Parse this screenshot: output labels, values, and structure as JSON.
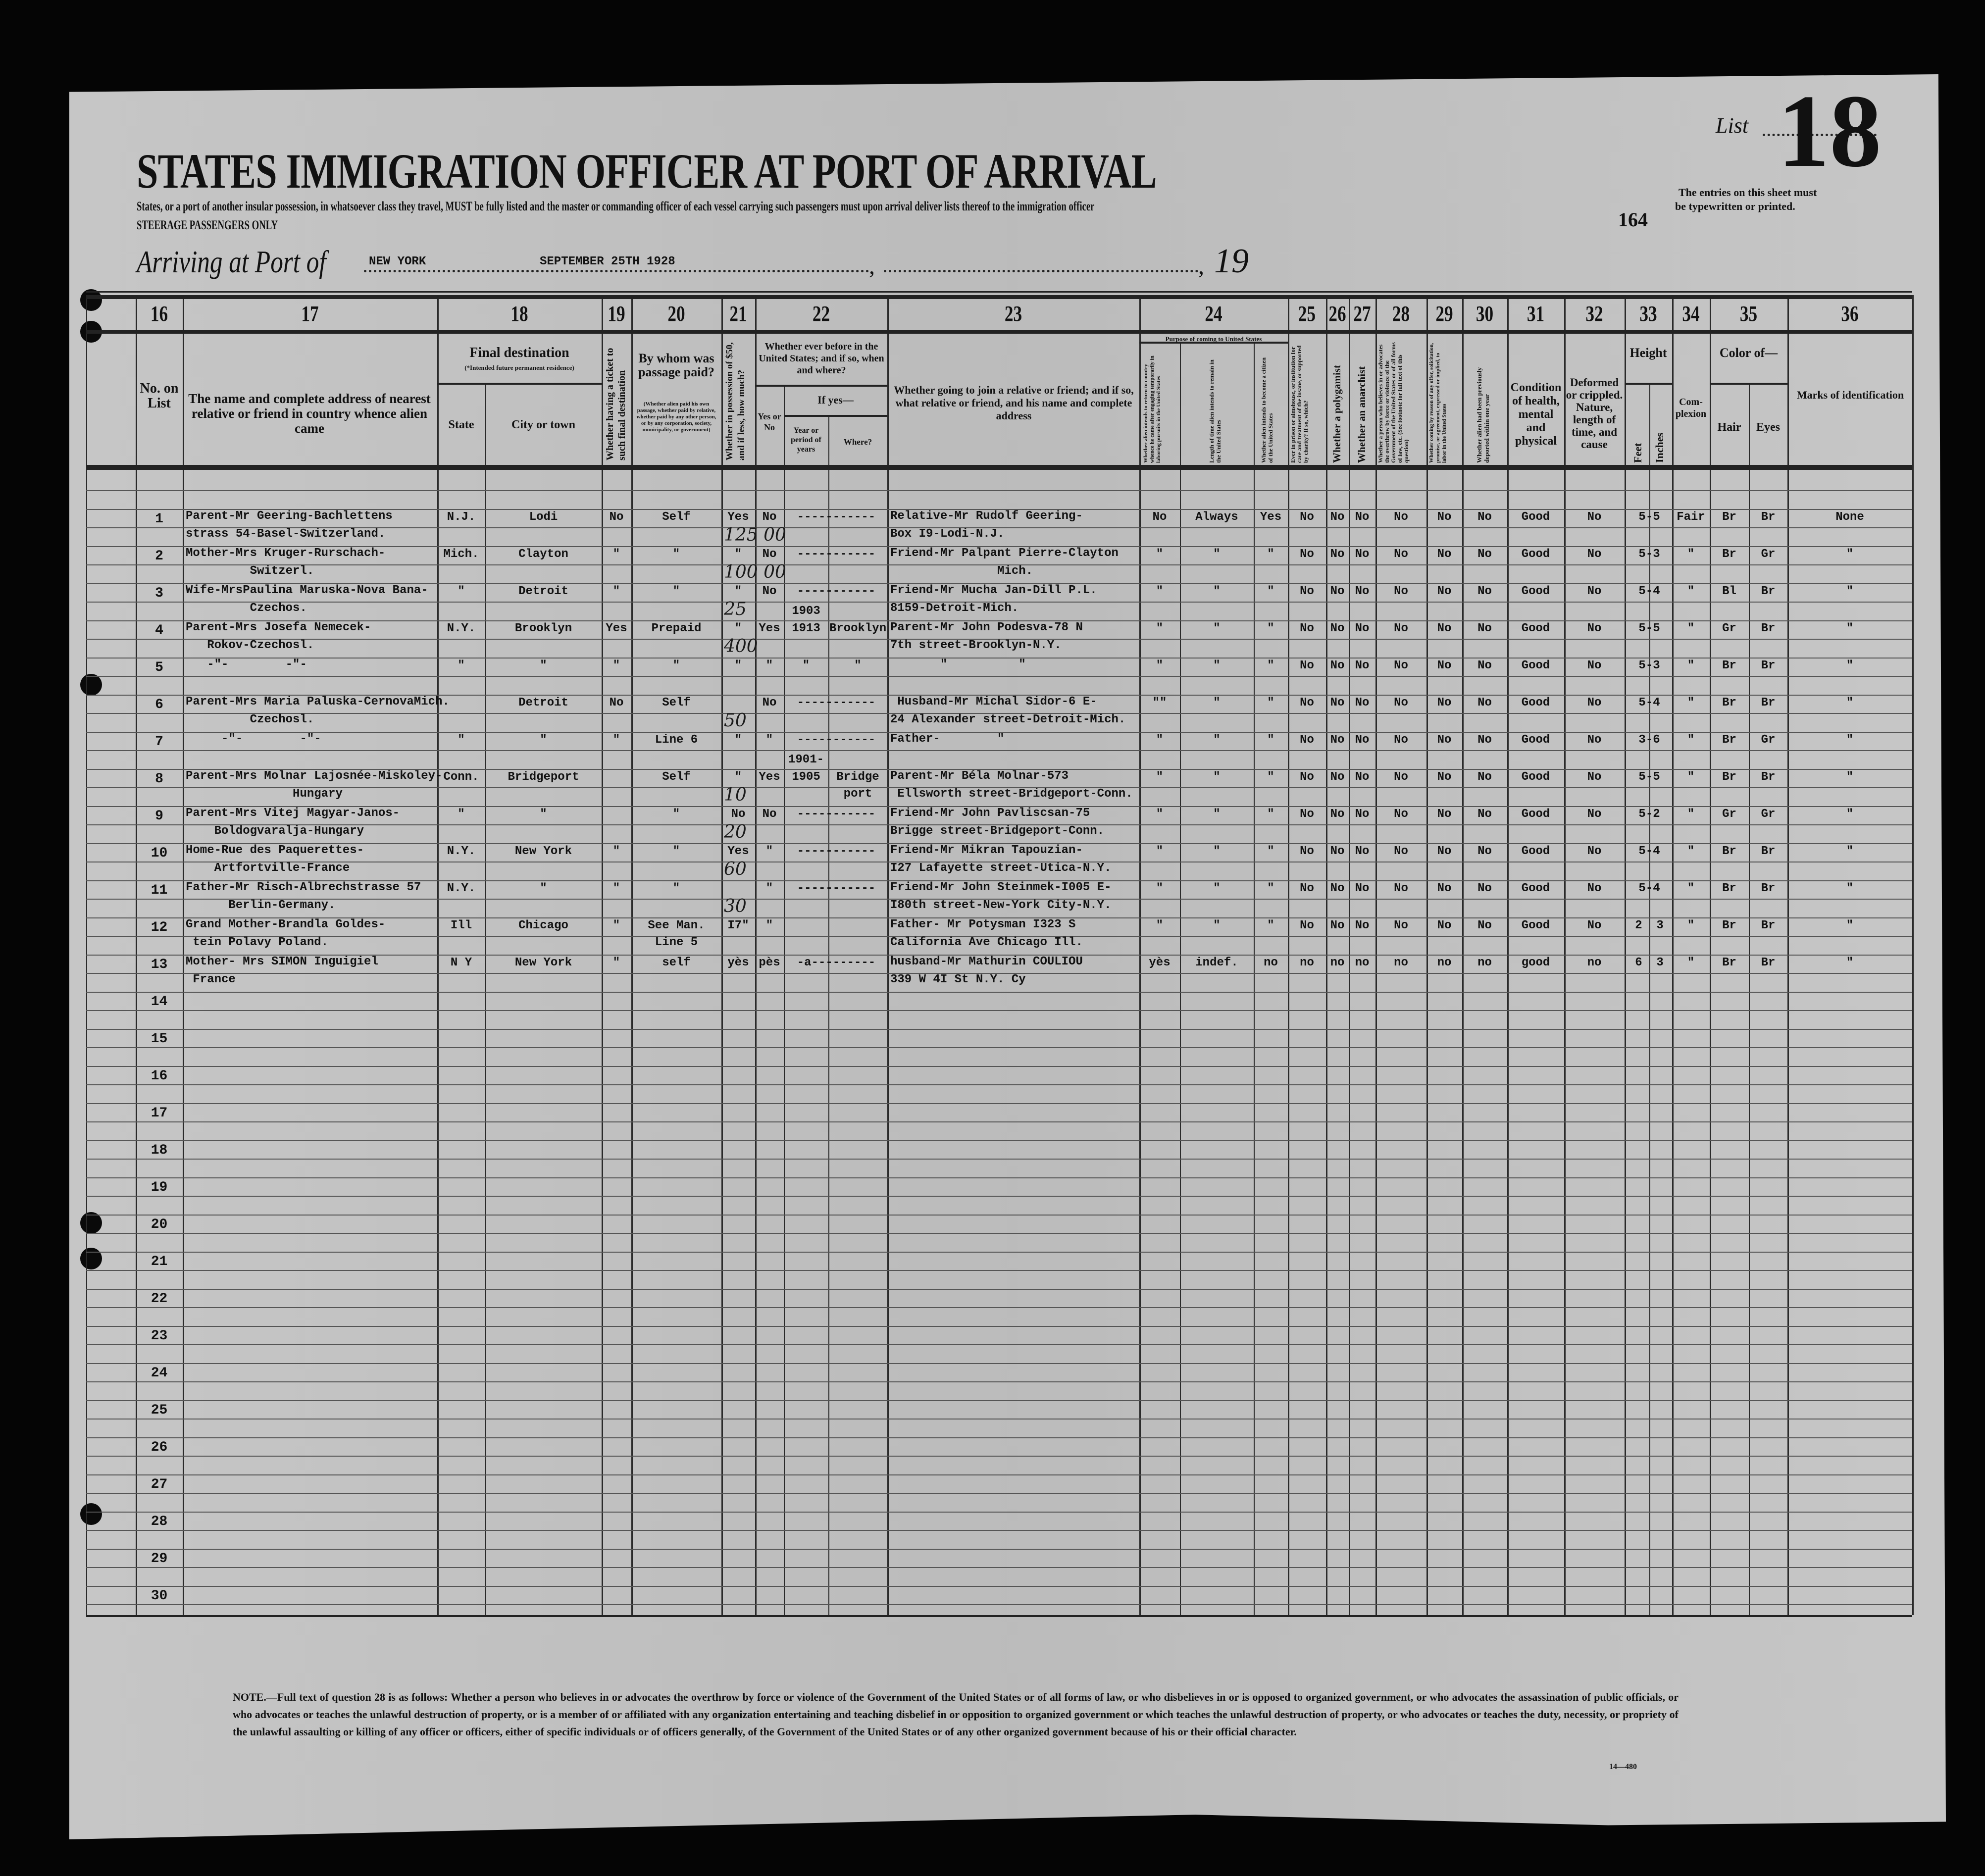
{
  "header": {
    "title": "STATES IMMIGRATION OFFICER AT PORT OF ARRIVAL",
    "instructions": "States, or a port of another insular possession, in whatsoever class they travel, MUST be fully listed and the master or commanding officer of each vessel carrying such passengers must upon arrival deliver lists thereof to the immigration officer",
    "class_note": "STEERAGE PASSENGERS ONLY",
    "arriving_label": "Arriving at Port of",
    "port": "NEW YORK",
    "date": "SEPTEMBER 25TH 1928",
    "comma": ",",
    "year_prefix": "19",
    "list_label": "List",
    "list_number": "18",
    "list_note_1": "The entries on this sheet must",
    "list_note_2": "be typewritten or printed.",
    "sheet_number": "164"
  },
  "columns": {
    "n16": "16",
    "n17": "17",
    "n18": "18",
    "n19": "19",
    "n20": "20",
    "n21": "21",
    "n22": "22",
    "n23": "23",
    "n24": "24",
    "n25": "25",
    "n26": "26",
    "n27": "27",
    "n28": "28",
    "n29": "29",
    "n30": "30",
    "n31": "31",
    "n32": "32",
    "n33": "33",
    "n34": "34",
    "n35": "35",
    "n36": "36",
    "c16": "No. on List",
    "c17": "The name and complete address of nearest relative or friend in country whence alien came",
    "c18": "Final destination",
    "c18_note": "(*Intended future permanent residence)",
    "c18_state": "State",
    "c18_city": "City or town",
    "c19": "Whether having a ticket to such final destination",
    "c20": "By whom was passage paid?",
    "c20_note": "(Whether alien paid his own passage, whether paid by relative, whether paid by any other person, or by any corporation, society, municipality, or government)",
    "c21": "Whether in possession of $50, and if less, how much?",
    "c22": "Whether ever before in the United States; and if so, when and where?",
    "c22_yesno": "Yes or No",
    "c22_ifyes": "If yes—",
    "c22_year": "Year or period of years",
    "c22_where": "Where?",
    "c23": "Whether going to join a relative or friend; and if so, what relative or friend, and his name and complete address",
    "c24": "Purpose of coming to United States",
    "c24a": "Whether alien intends to return to country whence he came after engaging temporarily in laboring pursuits in the United States",
    "c24b": "Length of time alien intends to remain in the United States",
    "c24c": "Whether alien intends to become a citizen of the United States",
    "c25": "Ever in prison or almshouse, or institution for care and treatment of the insane, or supported by charity? If so, which?",
    "c26": "Whether a polygamist",
    "c27": "Whether an anarchist",
    "c28": "Whether a person who believes in or advocates the overthrow by force or violence of the Government of the United States or of all forms of law, etc. (See footnote for full text of this question)",
    "c29": "Whether coming by reason of any offer, solicitation, promise, or agreement, expressed or implied, to labor in the United States",
    "c30": "Whether alien had been previously deported within one year",
    "c31": "Condition of health, mental and physical",
    "c32": "Deformed or crippled. Nature, length of time, and cause",
    "c33": "Height",
    "c33_feet": "Feet",
    "c33_inches": "Inches",
    "c34": "Com-plexion",
    "c35": "Color of—",
    "c35_hair": "Hair",
    "c35_eyes": "Eyes",
    "c36": "Marks of identification"
  },
  "rows": [
    {
      "no": "1",
      "rel1": "Parent-Mr Geering-Bachlettens",
      "rel2": "strass 54-Basel-Switzerland.",
      "state": "N.J.",
      "city": "Lodi",
      "ticket": "No",
      "paid": "Self",
      "money": "Yes",
      "before": "No",
      "years": "-----------",
      "where": "",
      "join1": "Relative-Mr Rudolf Geering-",
      "join2": "Box I9-Lodi-N.J.",
      "ret": "No",
      "length": "Always",
      "citizen": "Yes",
      "q25": "No",
      "q26": "No",
      "q27": "No",
      "q28": "No",
      "q29": "No",
      "q30": "No",
      "cond": "Good",
      "deformed": "No",
      "height": "5-5",
      "complexion": "Fair",
      "hair": "Br",
      "eyes": "Br",
      "marks": "None",
      "hand_money": "125 00"
    },
    {
      "no": "2",
      "rel1": "Mother-Mrs Kruger-Rurschach-",
      "rel2": "         Switzerl.",
      "state": "Mich.",
      "city": "Clayton",
      "ticket": "\"",
      "paid": "\"",
      "money": "\"",
      "before": "No",
      "years": "-----------",
      "where": "",
      "join1": "Friend-Mr Palpant Pierre-Clayton",
      "join2": "               Mich.",
      "ret": "\"",
      "length": "\"",
      "citizen": "\"",
      "q25": "No",
      "q26": "No",
      "q27": "No",
      "q28": "No",
      "q29": "No",
      "q30": "No",
      "cond": "Good",
      "deformed": "No",
      "height": "5-3",
      "complexion": "\"",
      "hair": "Br",
      "eyes": "Gr",
      "marks": "\"",
      "hand_money": "100 00"
    },
    {
      "no": "3",
      "rel1": "Wife-MrsPaulina Maruska-Nova Bana-",
      "rel2": "         Czechos.",
      "state": "\"",
      "city": "Detroit",
      "ticket": "\"",
      "paid": "\"",
      "money": "\"",
      "before": "No",
      "years": "-----------",
      "where": "",
      "join1": "Friend-Mr Mucha Jan-Dill P.L.",
      "join2": "8159-Detroit-Mich.",
      "ret": "\"",
      "length": "\"",
      "citizen": "\"",
      "q25": "No",
      "q26": "No",
      "q27": "No",
      "q28": "No",
      "q29": "No",
      "q30": "No",
      "cond": "Good",
      "deformed": "No",
      "height": "5-4",
      "complexion": "\"",
      "hair": "Bl",
      "eyes": "Br",
      "marks": "\"",
      "hand_money": "25"
    },
    {
      "no": "4",
      "rel1": "Parent-Mrs Josefa Nemecek-",
      "rel2": "   Rokov-Czechosl.",
      "state": "N.Y.",
      "city": "Brooklyn",
      "ticket": "Yes",
      "paid": "Prepaid",
      "money": "\"",
      "before": "Yes",
      "years": "1903",
      "years2": "1913",
      "where": "Brooklyn",
      "join1": "Parent-Mr John Podesva-78 N",
      "join2": "7th street-Brooklyn-N.Y.",
      "ret": "\"",
      "length": "\"",
      "citizen": "\"",
      "q25": "No",
      "q26": "No",
      "q27": "No",
      "q28": "No",
      "q29": "No",
      "q30": "No",
      "cond": "Good",
      "deformed": "No",
      "height": "5-5",
      "complexion": "\"",
      "hair": "Gr",
      "eyes": "Br",
      "marks": "\"",
      "hand_money": "400"
    },
    {
      "no": "5",
      "rel1": "   -\"-        -\"-",
      "rel2": "",
      "state": "\"",
      "city": "\"",
      "ticket": "\"",
      "paid": "\"",
      "money": "\"",
      "before": "\"",
      "years": "\"",
      "where": "\"",
      "join1": "       \"          \"",
      "join2": "",
      "ret": "\"",
      "length": "\"",
      "citizen": "\"",
      "q25": "No",
      "q26": "No",
      "q27": "No",
      "q28": "No",
      "q29": "No",
      "q30": "No",
      "cond": "Good",
      "deformed": "No",
      "height": "5-3",
      "complexion": "\"",
      "hair": "Br",
      "eyes": "Br",
      "marks": "\""
    },
    {
      "no": "6",
      "rel1": "Parent-Mrs Maria Paluska-CernovaMich.",
      "rel2": "         Czechosl.",
      "state": "",
      "city": "Detroit",
      "ticket": "No",
      "paid": "Self",
      "money": "",
      "before": "No",
      "years": "-----------",
      "where": "",
      "join1": " Husband-Mr Michal Sidor-6 E-",
      "join2": "24 Alexander street-Detroit-Mich.",
      "ret": "\"\"",
      "length": "\"",
      "citizen": "\"",
      "q25": "No",
      "q26": "No",
      "q27": "No",
      "q28": "No",
      "q29": "No",
      "q30": "No",
      "cond": "Good",
      "deformed": "No",
      "height": "5-4",
      "complexion": "\"",
      "hair": "Br",
      "eyes": "Br",
      "marks": "\"",
      "hand_money": "50"
    },
    {
      "no": "7",
      "rel1": "     -\"-        -\"-",
      "rel2": "",
      "state": "\"",
      "city": "\"",
      "ticket": "\"",
      "paid": "Line 6",
      "money": "\"",
      "before": "\"",
      "years": "-----------",
      "where": "",
      "join1": "Father-        \"",
      "join2": "",
      "ret": "\"",
      "length": "\"",
      "citizen": "\"",
      "q25": "No",
      "q26": "No",
      "q27": "No",
      "q28": "No",
      "q29": "No",
      "q30": "No",
      "cond": "Good",
      "deformed": "No",
      "height": "3-6",
      "complexion": "\"",
      "hair": "Br",
      "eyes": "Gr",
      "marks": "\""
    },
    {
      "no": "8",
      "rel1": "Parent-Mrs Molnar Lajosnée-Miskoley-",
      "rel2": "               Hungary",
      "state": "Conn.",
      "city": "Bridgeport",
      "ticket": "",
      "paid": "Self",
      "money": "\"",
      "before": "Yes",
      "years": "1901-",
      "years2": "1905",
      "where": "Bridge",
      "where2": "port",
      "join1": "Parent-Mr Béla Molnar-573",
      "join2": " Ellsworth street-Bridgeport-Conn.",
      "ret": "\"",
      "length": "\"",
      "citizen": "\"",
      "q25": "No",
      "q26": "No",
      "q27": "No",
      "q28": "No",
      "q29": "No",
      "q30": "No",
      "cond": "Good",
      "deformed": "No",
      "height": "5-5",
      "complexion": "\"",
      "hair": "Br",
      "eyes": "Br",
      "marks": "\"",
      "hand_money": "10"
    },
    {
      "no": "9",
      "rel1": "Parent-Mrs Vitej Magyar-Janos-",
      "rel2": "    Boldogvaralja-Hungary",
      "state": "\"",
      "city": "\"",
      "ticket": "",
      "paid": "\"",
      "money": "No",
      "before": "No",
      "years": "-----------",
      "where": "",
      "join1": "Friend-Mr John Pavliscsan-75",
      "join2": "Brigge street-Bridgeport-Conn.",
      "ret": "\"",
      "length": "\"",
      "citizen": "\"",
      "q25": "No",
      "q26": "No",
      "q27": "No",
      "q28": "No",
      "q29": "No",
      "q30": "No",
      "cond": "Good",
      "deformed": "No",
      "height": "5-2",
      "complexion": "\"",
      "hair": "Gr",
      "eyes": "Gr",
      "marks": "\"",
      "hand_money": "20"
    },
    {
      "no": "10",
      "rel1": "Home-Rue des Paquerettes-",
      "rel2": "    Artfortville-France",
      "state": "N.Y.",
      "city": "New York",
      "ticket": "\"",
      "paid": "\"",
      "money": "Yes",
      "before": "\"",
      "years": "-----------",
      "where": "",
      "join1": "Friend-Mr Mikran Tapouzian-",
      "join2": "I27 Lafayette street-Utica-N.Y.",
      "ret": "\"",
      "length": "\"",
      "citizen": "\"",
      "q25": "No",
      "q26": "No",
      "q27": "No",
      "q28": "No",
      "q29": "No",
      "q30": "No",
      "cond": "Good",
      "deformed": "No",
      "height": "5-4",
      "complexion": "\"",
      "hair": "Br",
      "eyes": "Br",
      "marks": "\"",
      "hand_money": "60"
    },
    {
      "no": "11",
      "rel1": "Father-Mr Risch-Albrechstrasse 57",
      "rel2": "      Berlin-Germany.",
      "state": "N.Y.",
      "city": "\"",
      "ticket": "\"",
      "paid": "\"",
      "money": "",
      "before": "\"",
      "years": "-----------",
      "where": "",
      "join1": "Friend-Mr John Steinmek-I005 E-",
      "join2": "I80th street-New-York City-N.Y.",
      "ret": "\"",
      "length": "\"",
      "citizen": "\"",
      "q25": "No",
      "q26": "No",
      "q27": "No",
      "q28": "No",
      "q29": "No",
      "q30": "No",
      "cond": "Good",
      "deformed": "No",
      "height": "5-4",
      "complexion": "\"",
      "hair": "Br",
      "eyes": "Br",
      "marks": "\"",
      "hand_money": "30"
    },
    {
      "no": "12",
      "rel1": "Grand Mother-Brandla Goldes-",
      "rel2": " tein Polavy Poland.",
      "state": "Ill",
      "city": "Chicago",
      "ticket": "\"",
      "paid": "See Man.",
      "paid2": "Line 5",
      "money": "I7\"",
      "before": "\"",
      "years": "",
      "where": "",
      "join1": "Father- Mr Potysman I323 S",
      "join2": "California Ave Chicago Ill.",
      "ret": "\"",
      "length": "\"",
      "citizen": "\"",
      "q25": "No",
      "q26": "No",
      "q27": "No",
      "q28": "No",
      "q29": "No",
      "q30": "No",
      "cond": "Good",
      "deformed": "No",
      "height": "2  3",
      "complexion": "\"",
      "hair": "Br",
      "eyes": "Br",
      "marks": "\""
    },
    {
      "no": "13",
      "rel1": "Mother- Mrs SIMON Inguigiel",
      "rel2": " France",
      "state": "N Y",
      "city": "New York",
      "ticket": "\"",
      "paid": "self",
      "money": "yès",
      "before": "pès",
      "years": "-a---------",
      "where": "",
      "join1": "husband-Mr Mathurin COULIOU",
      "join2": "339 W 4I St N.Y. Cy",
      "ret": "yès",
      "length": "indef.",
      "citizen": "no",
      "q25": "no",
      "q26": "no",
      "q27": "no",
      "q28": "no",
      "q29": "no",
      "q30": "no",
      "cond": "good",
      "deformed": "no",
      "height": "6  3",
      "complexion": "\"",
      "hair": "Br",
      "eyes": "Br",
      "marks": "\""
    },
    {
      "no": "14"
    },
    {
      "no": "15"
    },
    {
      "no": "16"
    },
    {
      "no": "17"
    },
    {
      "no": "18"
    },
    {
      "no": "19"
    },
    {
      "no": "20"
    },
    {
      "no": "21"
    },
    {
      "no": "22"
    },
    {
      "no": "23"
    },
    {
      "no": "24"
    },
    {
      "no": "25"
    },
    {
      "no": "26"
    },
    {
      "no": "27"
    },
    {
      "no": "28"
    },
    {
      "no": "29"
    },
    {
      "no": "30"
    }
  ],
  "footnote": {
    "text": "NOTE.—Full text of question 28 is as follows: Whether a person who believes in or advocates the overthrow by force or violence of the Government of the United States or of all forms of law, or who disbelieves in or is opposed to organized government, or who advocates the assassination of public officials, or who advocates or teaches the unlawful destruction of property, or is a member of or affiliated with any organization entertaining and teaching disbelief in or opposition to organized government or which teaches the unlawful destruction of property, or who advocates or teaches the duty, necessity, or propriety of the unlawful assaulting or killing of any officer or officers, either of specific individuals or of officers generally, of the Government of the United States or of any other organized government because of his or their official character.",
    "form_number": "14—480"
  },
  "colors": {
    "paper": "#c3c3c3",
    "ink": "#111111",
    "background": "#050505"
  }
}
